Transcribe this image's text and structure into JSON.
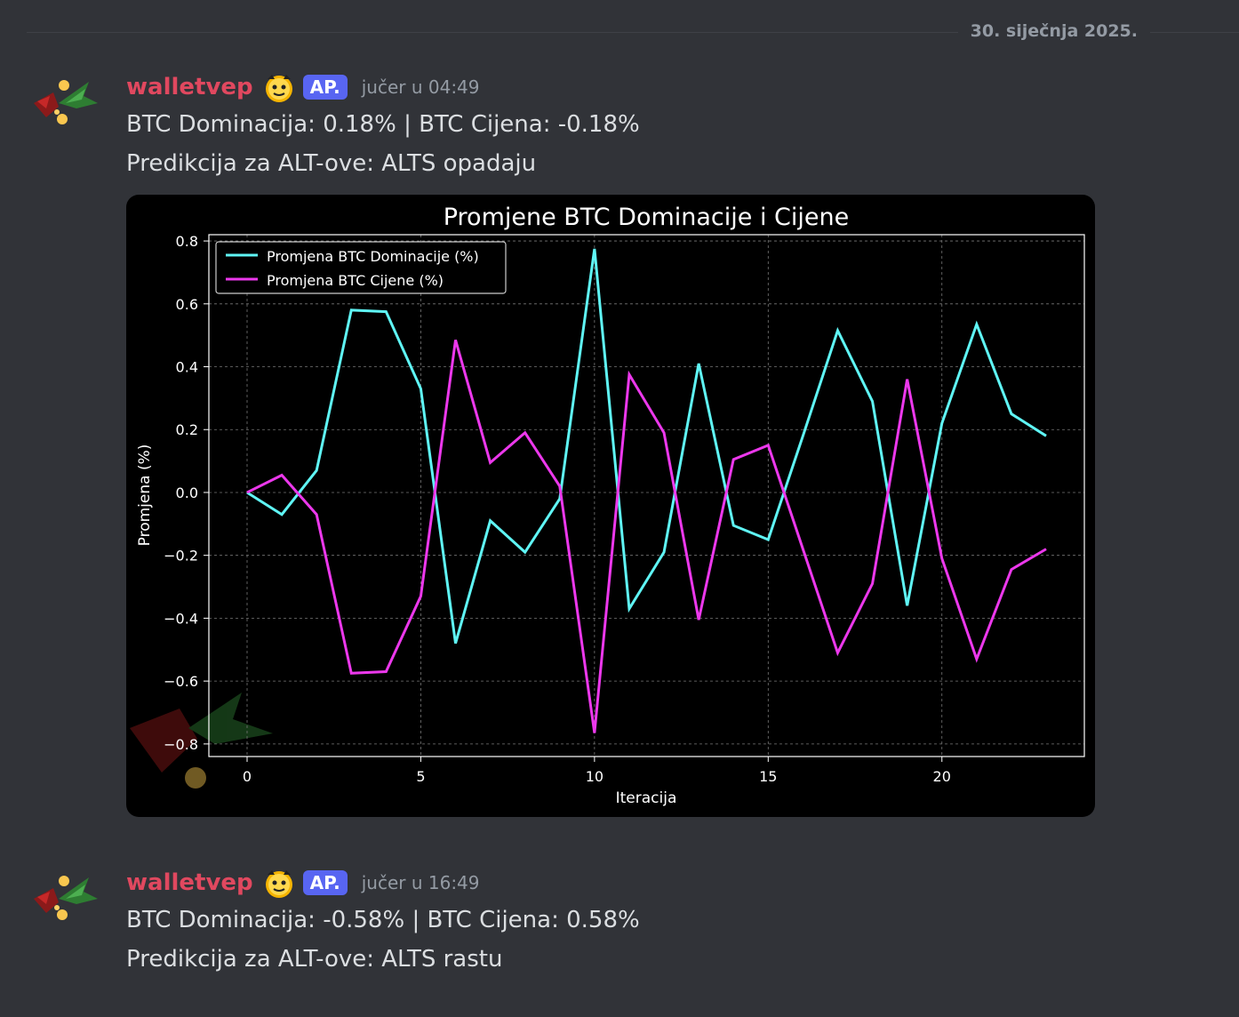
{
  "date_divider": "30. siječnja 2025.",
  "messages": [
    {
      "username": "walletvep",
      "tag": "AP.",
      "timestamp": "jučer u 04:49",
      "line1": "BTC Dominacija: 0.18% | BTC Cijena: -0.18%",
      "line2": "Predikcija za ALT-ove: ALTS opadaju"
    },
    {
      "username": "walletvep",
      "tag": "AP.",
      "timestamp": "jučer u 16:49",
      "line1": "BTC Dominacija: -0.58% | BTC Cijena: 0.58%",
      "line2": "Predikcija za ALT-ove: ALTS rastu"
    }
  ],
  "colors": {
    "username": "#e0485f",
    "tag_bg": "#5865f2",
    "series_dominance": "#5ff5f5",
    "series_price": "#ec38ec"
  },
  "icons": [
    "avatar-logo-icon",
    "bot-emoji-icon"
  ],
  "chart_data": {
    "type": "line",
    "title": "Promjene BTC Dominacije i Cijene",
    "xlabel": "Iteracija",
    "ylabel": "Promjena (%)",
    "xlim": [
      -1.1,
      24.1
    ],
    "ylim": [
      -0.84,
      0.82
    ],
    "xticks": [
      0,
      5,
      10,
      15,
      20
    ],
    "yticks": [
      -0.8,
      -0.6,
      -0.4,
      -0.2,
      0.0,
      0.2,
      0.4,
      0.6,
      0.8
    ],
    "ytick_labels": [
      "−0.8",
      "−0.6",
      "−0.4",
      "−0.2",
      "0.0",
      "0.2",
      "0.4",
      "0.6",
      "0.8"
    ],
    "grid": true,
    "legend": "upper-left",
    "x": [
      0,
      1,
      2,
      3,
      4,
      5,
      6,
      7,
      8,
      9,
      10,
      11,
      12,
      13,
      14,
      15,
      16,
      17,
      18,
      19,
      20,
      21,
      22,
      23
    ],
    "series": [
      {
        "name": "Promjena BTC Dominacije (%)",
        "color": "#5ff5f5",
        "values": [
          0.0,
          -0.07,
          0.07,
          0.58,
          0.575,
          0.33,
          -0.48,
          -0.09,
          -0.19,
          -0.02,
          0.775,
          -0.37,
          -0.19,
          0.41,
          -0.105,
          -0.15,
          0.18,
          0.515,
          0.29,
          -0.36,
          0.22,
          0.535,
          0.25,
          0.18
        ]
      },
      {
        "name": "Promjena BTC Cijene (%)",
        "color": "#ec38ec",
        "values": [
          0.0,
          0.055,
          -0.07,
          -0.575,
          -0.57,
          -0.33,
          0.485,
          0.095,
          0.19,
          0.02,
          -0.765,
          0.375,
          0.19,
          -0.405,
          0.105,
          0.15,
          -0.18,
          -0.51,
          -0.29,
          0.36,
          -0.21,
          -0.53,
          -0.245,
          -0.18
        ]
      }
    ]
  }
}
